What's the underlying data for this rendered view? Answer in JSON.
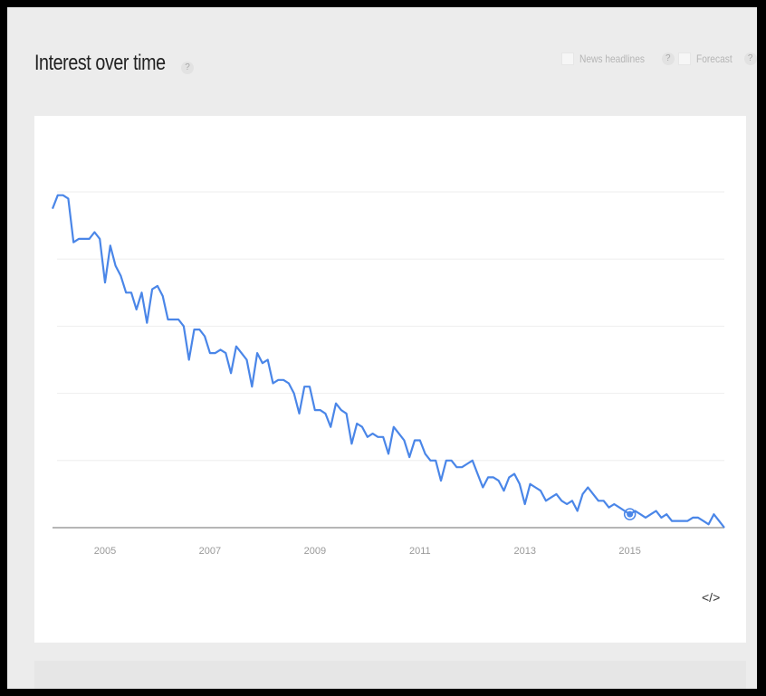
{
  "header": {
    "title": "Interest over time",
    "help_glyph": "?",
    "news_label": "News headlines",
    "forecast_label": "Forecast"
  },
  "embed_label": "</>",
  "colors": {
    "line": "#4a86e8",
    "grid": "#eeeeee",
    "axis": "#9e9e9e"
  },
  "chart_data": {
    "type": "line",
    "title": "",
    "x_tick_labels": [
      "2005",
      "2007",
      "2009",
      "2011",
      "2013",
      "2015"
    ],
    "x_range": [
      2004.0,
      2016.8
    ],
    "ylim": [
      0,
      100
    ],
    "grid": true,
    "series": [
      {
        "x": [
          2004.0,
          2004.1,
          2004.2,
          2004.3,
          2004.4,
          2004.5,
          2004.6,
          2004.7,
          2004.8,
          2004.9,
          2005.0,
          2005.1,
          2005.2,
          2005.3,
          2005.4,
          2005.5,
          2005.6,
          2005.7,
          2005.8,
          2005.9,
          2006.0,
          2006.1,
          2006.2,
          2006.3,
          2006.4,
          2006.5,
          2006.6,
          2006.7,
          2006.8,
          2006.9,
          2007.0,
          2007.1,
          2007.2,
          2007.3,
          2007.4,
          2007.5,
          2007.6,
          2007.7,
          2007.8,
          2007.9,
          2008.0,
          2008.1,
          2008.2,
          2008.3,
          2008.4,
          2008.5,
          2008.6,
          2008.7,
          2008.8,
          2008.9,
          2009.0,
          2009.1,
          2009.2,
          2009.3,
          2009.4,
          2009.5,
          2009.6,
          2009.7,
          2009.8,
          2009.9,
          2010.0,
          2010.1,
          2010.2,
          2010.3,
          2010.4,
          2010.5,
          2010.6,
          2010.7,
          2010.8,
          2010.9,
          2011.0,
          2011.1,
          2011.2,
          2011.3,
          2011.4,
          2011.5,
          2011.6,
          2011.7,
          2011.8,
          2011.9,
          2012.0,
          2012.1,
          2012.2,
          2012.3,
          2012.4,
          2012.5,
          2012.6,
          2012.7,
          2012.8,
          2012.9,
          2013.0,
          2013.1,
          2013.2,
          2013.3,
          2013.4,
          2013.5,
          2013.6,
          2013.7,
          2013.8,
          2013.9,
          2014.0,
          2014.1,
          2014.2,
          2014.3,
          2014.4,
          2014.5,
          2014.6,
          2014.7,
          2014.8,
          2014.9,
          2015.0,
          2015.1,
          2015.2,
          2015.3,
          2015.4,
          2015.5,
          2015.6,
          2015.7,
          2015.8,
          2015.9,
          2016.0,
          2016.1,
          2016.2,
          2016.3,
          2016.4,
          2016.5,
          2016.6,
          2016.7,
          2016.8
        ],
        "y": [
          95,
          99,
          99,
          98,
          85,
          86,
          86,
          86,
          88,
          86,
          73,
          84,
          78,
          75,
          70,
          70,
          65,
          70,
          61,
          71,
          72,
          69,
          62,
          62,
          62,
          60,
          50,
          59,
          59,
          57,
          52,
          52,
          53,
          52,
          46,
          54,
          52,
          50,
          42,
          52,
          49,
          50,
          43,
          44,
          44,
          43,
          40,
          34,
          42,
          42,
          35,
          35,
          34,
          30,
          37,
          35,
          34,
          25,
          31,
          30,
          27,
          28,
          27,
          27,
          22,
          30,
          28,
          26,
          21,
          26,
          26,
          22,
          20,
          20,
          14,
          20,
          20,
          18,
          18,
          19,
          20,
          16,
          12,
          15,
          15,
          14,
          11,
          15,
          16,
          13,
          7,
          13,
          12,
          11,
          8,
          9,
          10,
          8,
          7,
          8,
          5,
          10,
          12,
          10,
          8,
          8,
          6,
          7,
          6,
          5,
          4,
          5,
          4,
          3,
          4,
          5,
          3,
          4,
          2,
          2,
          2,
          2,
          3,
          3,
          2,
          1,
          4,
          2,
          0
        ],
        "highlight_x": 2015.0
      }
    ]
  }
}
